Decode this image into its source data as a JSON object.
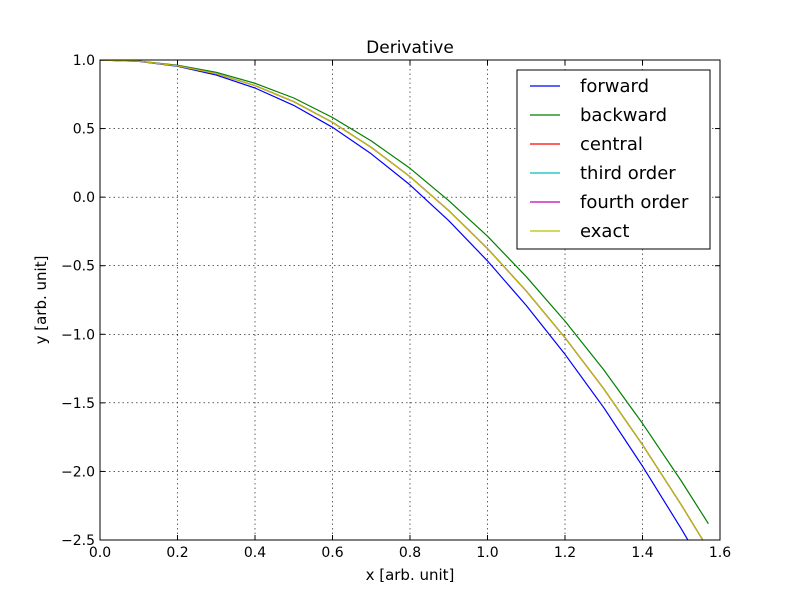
{
  "chart_data": {
    "type": "line",
    "title": "Derivative",
    "xlabel": "x [arb. unit]",
    "ylabel": "y [arb. unit]",
    "xlim": [
      0.0,
      1.6
    ],
    "ylim": [
      -2.5,
      1.0
    ],
    "xticks": [
      0.0,
      0.2,
      0.4,
      0.6,
      0.8,
      1.0,
      1.2,
      1.4,
      1.6
    ],
    "xtick_labels": [
      "0.0",
      "0.2",
      "0.4",
      "0.6",
      "0.8",
      "1.0",
      "1.2",
      "1.4",
      "1.6"
    ],
    "yticks": [
      1.0,
      0.5,
      0.0,
      -0.5,
      -1.0,
      -1.5,
      -2.0,
      -2.5
    ],
    "ytick_labels": [
      "1.0",
      "0.5",
      "0.0",
      "−0.5",
      "−1.0",
      "−1.5",
      "−2.0",
      "−2.5"
    ],
    "grid": true,
    "legend_position": "upper-right",
    "x": [
      0.0,
      0.1,
      0.2,
      0.3,
      0.4,
      0.5,
      0.6,
      0.7,
      0.8,
      0.9,
      1.0,
      1.1,
      1.2,
      1.3,
      1.4,
      1.5,
      1.57
    ],
    "series": [
      {
        "name": "forward",
        "color": "#0000ff",
        "values": [
          1.0,
          0.99,
          0.954,
          0.89,
          0.796,
          0.669,
          0.509,
          0.316,
          0.089,
          -0.172,
          -0.465,
          -0.79,
          -1.146,
          -1.535,
          -1.962,
          -2.418,
          -2.755
        ]
      },
      {
        "name": "backward",
        "color": "#008000",
        "values": [
          1.0,
          0.992,
          0.962,
          0.91,
          0.83,
          0.723,
          0.581,
          0.41,
          0.21,
          -0.026,
          -0.285,
          -0.58,
          -0.904,
          -1.26,
          -1.65,
          -2.07,
          -2.381
        ]
      },
      {
        "name": "central",
        "color": "#ff0000",
        "values": [
          1.0,
          0.991,
          0.958,
          0.9,
          0.813,
          0.696,
          0.545,
          0.363,
          0.149,
          -0.099,
          -0.375,
          -0.685,
          -1.025,
          -1.398,
          -1.806,
          -2.244,
          -2.568
        ]
      },
      {
        "name": "third order",
        "color": "#00bfbf",
        "values": [
          1.0,
          0.991,
          0.958,
          0.9,
          0.813,
          0.696,
          0.546,
          0.364,
          0.15,
          -0.098,
          -0.374,
          -0.684,
          -1.024,
          -1.397,
          -1.805,
          -2.243,
          -2.567
        ]
      },
      {
        "name": "fourth order",
        "color": "#bf00bf",
        "values": [
          1.0,
          0.991,
          0.958,
          0.9,
          0.813,
          0.696,
          0.545,
          0.363,
          0.149,
          -0.099,
          -0.375,
          -0.685,
          -1.025,
          -1.398,
          -1.806,
          -2.244,
          -2.568
        ]
      },
      {
        "name": "exact",
        "color": "#bfbf00",
        "values": [
          1.0,
          0.991,
          0.958,
          0.9,
          0.813,
          0.696,
          0.545,
          0.363,
          0.149,
          -0.099,
          -0.375,
          -0.685,
          -1.025,
          -1.398,
          -1.806,
          -2.244,
          -2.568
        ]
      }
    ]
  }
}
